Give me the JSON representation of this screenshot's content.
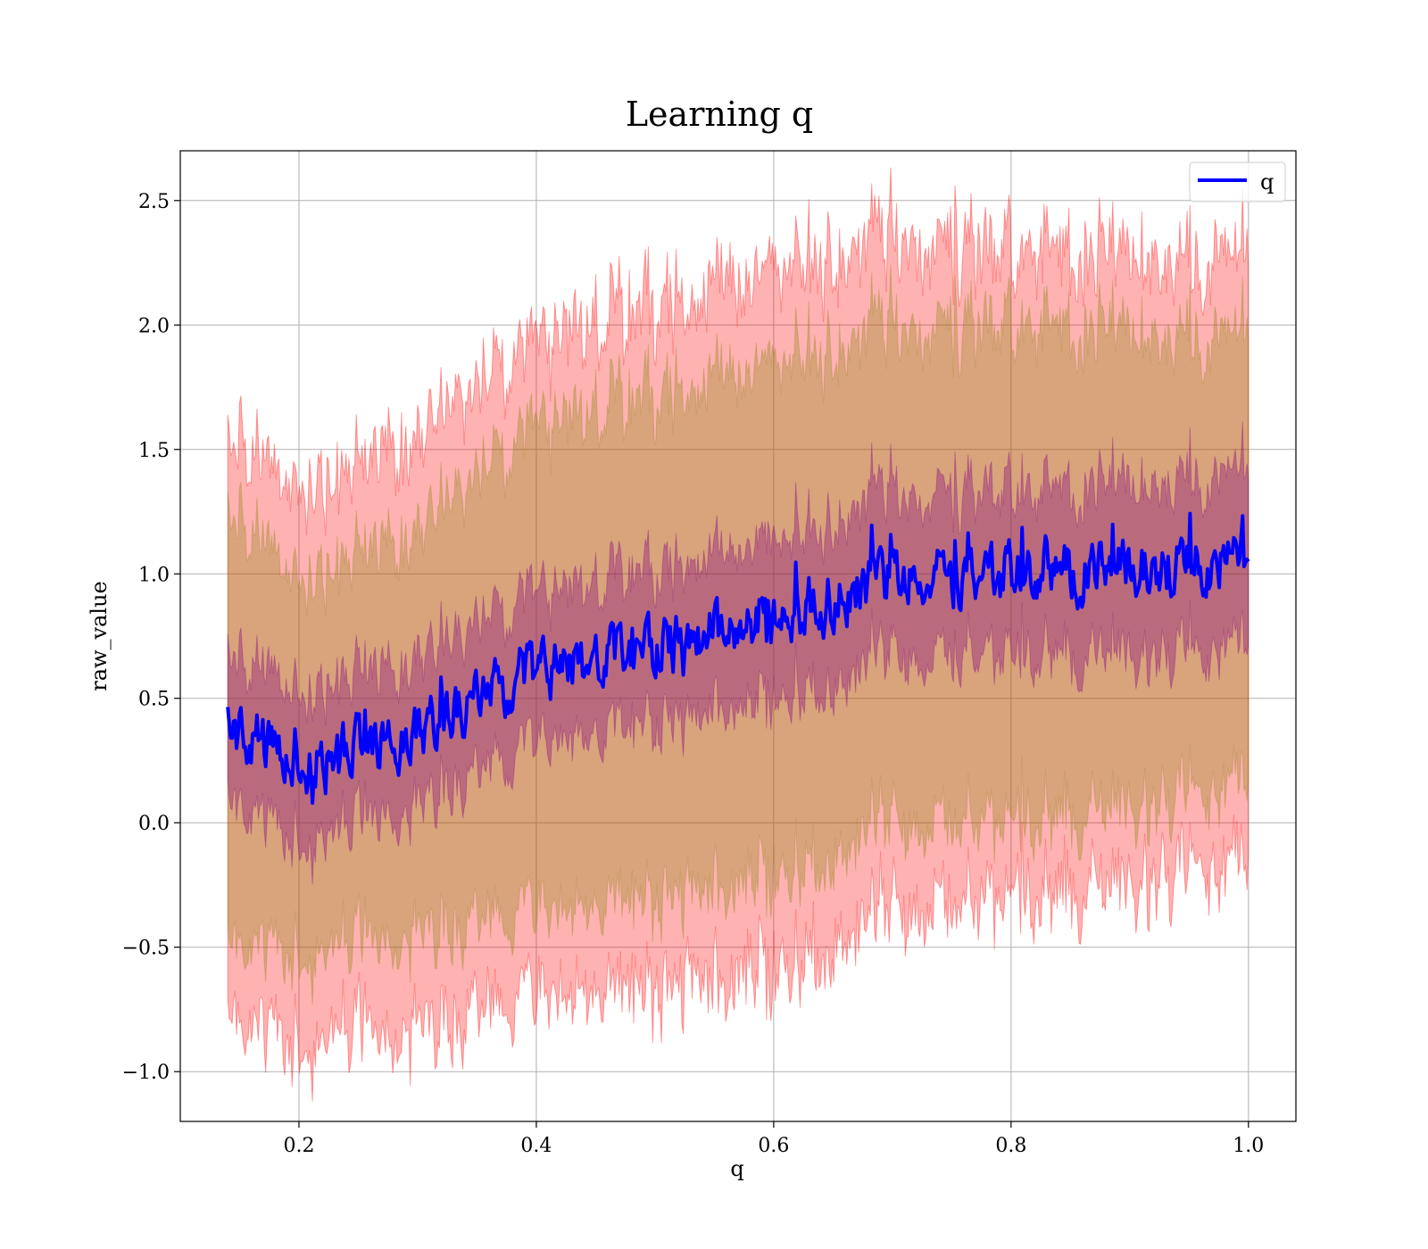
{
  "chart_data": {
    "type": "area",
    "title": "Learning q",
    "xlabel": "q",
    "ylabel": "raw_value",
    "xlim": [
      0.1,
      1.04
    ],
    "ylim": [
      -1.2,
      2.7
    ],
    "x_ticks": [
      0.2,
      0.4,
      0.6,
      0.8,
      1.0
    ],
    "x_tick_labels": [
      "0.2",
      "0.4",
      "0.6",
      "0.8",
      "1.0"
    ],
    "y_ticks": [
      -1.0,
      -0.5,
      0.0,
      0.5,
      1.0,
      1.5,
      2.0,
      2.5
    ],
    "y_tick_labels": [
      "−1.0",
      "−0.5",
      "0.0",
      "0.5",
      "1.0",
      "1.5",
      "2.0",
      "2.5"
    ],
    "grid": true,
    "legend": {
      "position": "top-right",
      "entries": [
        "q"
      ]
    },
    "colors": {
      "mean": "#0000ff",
      "band": "#ff0000",
      "inner_band": "#800080",
      "middle_band": "#808000"
    },
    "x": [
      0.14,
      0.2,
      0.3,
      0.4,
      0.5,
      0.6,
      0.7,
      0.8,
      0.9,
      1.0
    ],
    "series": [
      {
        "name": "q",
        "role": "mean",
        "values": [
          0.38,
          0.22,
          0.38,
          0.6,
          0.7,
          0.82,
          0.98,
          1.0,
          1.02,
          1.05
        ]
      },
      {
        "role": "std_1",
        "values": [
          0.29,
          0.3,
          0.3,
          0.3,
          0.31,
          0.32,
          0.33,
          0.33,
          0.34,
          0.35
        ]
      },
      {
        "role": "std_2",
        "values": [
          0.86,
          0.75,
          0.82,
          0.97,
          1.02,
          1.03,
          1.0,
          1.0,
          0.95,
          0.9
        ]
      },
      {
        "role": "std_3",
        "values": [
          1.16,
          1.1,
          1.2,
          1.3,
          1.38,
          1.4,
          1.35,
          1.3,
          1.25,
          1.22
        ]
      }
    ],
    "noise": 0.12
  }
}
